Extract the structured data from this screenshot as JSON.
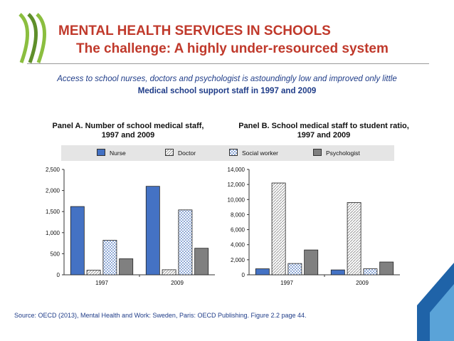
{
  "title": "MENTAL HEALTH SERVICES IN SCHOOLS",
  "subtitle": "The challenge: A highly under-resourced system",
  "intro": "Access to school nurses, doctors and psychologist is astoundingly low and improved only little",
  "figure_title": "Medical school support staff in 1997 and 2009",
  "panel_a_title_line1": "Panel A. Number of school medical staff,",
  "panel_a_title_line2": "1997 and 2009",
  "panel_b_title_line1": "Panel B. School medical staff to student ratio,",
  "panel_b_title_line2": "1997 and 2009",
  "legend": [
    "Nurse",
    "Doctor",
    "Social worker",
    "Psychologist"
  ],
  "source": "Source: OECD (2013), Mental Health and Work: Sweden, Paris: OECD Publishing. Figure 2.2 page 44.",
  "colors": {
    "title": "#c0392b",
    "text_blue": "#1f3c88",
    "nurse": "#4472c4",
    "psychologist": "#808080",
    "logo_green": "#8bbe3f"
  },
  "chart_data": [
    {
      "type": "bar",
      "categories": [
        "1997",
        "2009"
      ],
      "series": [
        {
          "name": "Nurse",
          "values": [
            1620,
            2100
          ]
        },
        {
          "name": "Doctor",
          "values": [
            110,
            120
          ]
        },
        {
          "name": "Social worker",
          "values": [
            820,
            1540
          ]
        },
        {
          "name": "Psychologist",
          "values": [
            380,
            630
          ]
        }
      ],
      "ylim": [
        0,
        2500
      ],
      "yticks": [
        "0",
        "500",
        "1,000",
        "1,500",
        "2,000",
        "2,500"
      ]
    },
    {
      "type": "bar",
      "categories": [
        "1997",
        "2009"
      ],
      "series": [
        {
          "name": "Nurse",
          "values": [
            800,
            650
          ]
        },
        {
          "name": "Doctor",
          "values": [
            12200,
            9600
          ]
        },
        {
          "name": "Social worker",
          "values": [
            1500,
            800
          ]
        },
        {
          "name": "Psychologist",
          "values": [
            3300,
            1700
          ]
        }
      ],
      "ylim": [
        0,
        14000
      ],
      "yticks": [
        "0",
        "2,000",
        "4,000",
        "6,000",
        "8,000",
        "10,000",
        "12,000",
        "14,000"
      ]
    }
  ]
}
